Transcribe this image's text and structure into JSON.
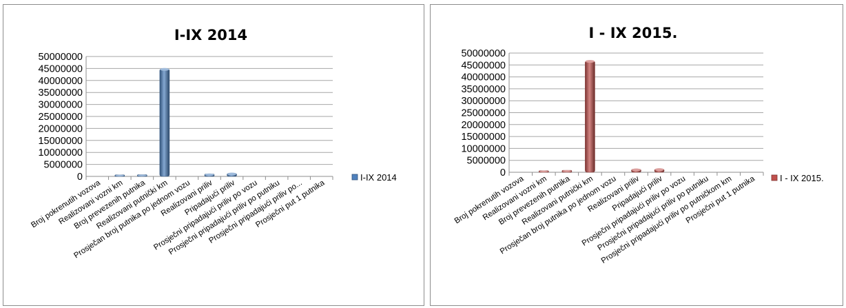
{
  "chart_data": [
    {
      "type": "bar",
      "title": "I-IX 2014",
      "xlabel": "",
      "ylabel": "",
      "ylim": [
        0,
        50000000
      ],
      "y_ticks": [
        "0",
        "5000000",
        "10000000",
        "15000000",
        "20000000",
        "25000000",
        "30000000",
        "35000000",
        "40000000",
        "45000000",
        "50000000"
      ],
      "grid": true,
      "legend": "right",
      "categories": [
        "Broj pokrenutih vozova",
        "Realizovani vozni km",
        "Broj prevezenih putnika",
        "Realizovani putnički km",
        "Prosječan broj putnika po jednom vozu",
        "Realizovani priliv",
        "Pripadajući priliv",
        "Prosječni pripadajući priliv po vozu",
        "Prosječni pripadajući priliv po putniku",
        "Prosječni pripadajući priliv po...",
        "Prosječni put 1 putnika"
      ],
      "series": [
        {
          "name": "I-IX 2014",
          "color": "#4f81bd",
          "values": [
            9000,
            650000,
            700000,
            44900000,
            70,
            1000000,
            1300000,
            120,
            1.6,
            0.03,
            65
          ]
        }
      ]
    },
    {
      "type": "bar",
      "title": "I - IX 2015.",
      "xlabel": "",
      "ylabel": "",
      "ylim": [
        0,
        50000000
      ],
      "y_ticks": [
        "0",
        "5000000",
        "10000000",
        "15000000",
        "20000000",
        "25000000",
        "30000000",
        "35000000",
        "40000000",
        "45000000",
        "50000000"
      ],
      "grid": true,
      "legend": "right",
      "categories": [
        "Broj pokrenutih vozova",
        "Realizovani vozni km",
        "Broj prevezenih putnika",
        "Realizovani putnički km",
        "Prosječan broj putnika po jednom vozu",
        "Realizovani priliv",
        "Pripadajući priliv",
        "Prosječni pripadajući priliv po vozu",
        "Prosječni pripadajući priliv po putniku",
        "Prosječni pripadajući priliv po putničkom km",
        "Prosječni put 1 putnika"
      ],
      "series": [
        {
          "name": "I - IX 2015.",
          "color": "#c0504d",
          "values": [
            9000,
            650000,
            800000,
            46800000,
            75,
            1300000,
            1400000,
            140,
            1.7,
            0.03,
            60
          ]
        }
      ]
    }
  ]
}
